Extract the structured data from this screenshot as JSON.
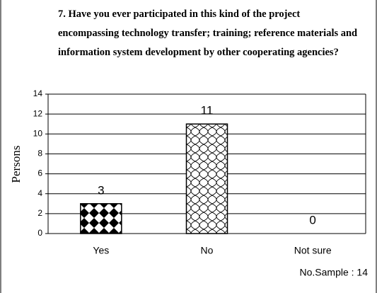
{
  "chart_data": {
    "type": "bar",
    "title": "7. Have you ever participated in this kind of the project encompassing technology transfer; training; reference materials and information system development by other cooperating agencies?",
    "y_label": "Persons",
    "annotation": "No.Sample : 14",
    "categories": [
      "Yes",
      "No",
      "Not sure"
    ],
    "values": [
      3,
      11,
      0
    ],
    "ylim": [
      0,
      14
    ],
    "yticks": [
      0,
      2,
      4,
      6,
      8,
      10,
      12,
      14
    ],
    "grid": true
  }
}
